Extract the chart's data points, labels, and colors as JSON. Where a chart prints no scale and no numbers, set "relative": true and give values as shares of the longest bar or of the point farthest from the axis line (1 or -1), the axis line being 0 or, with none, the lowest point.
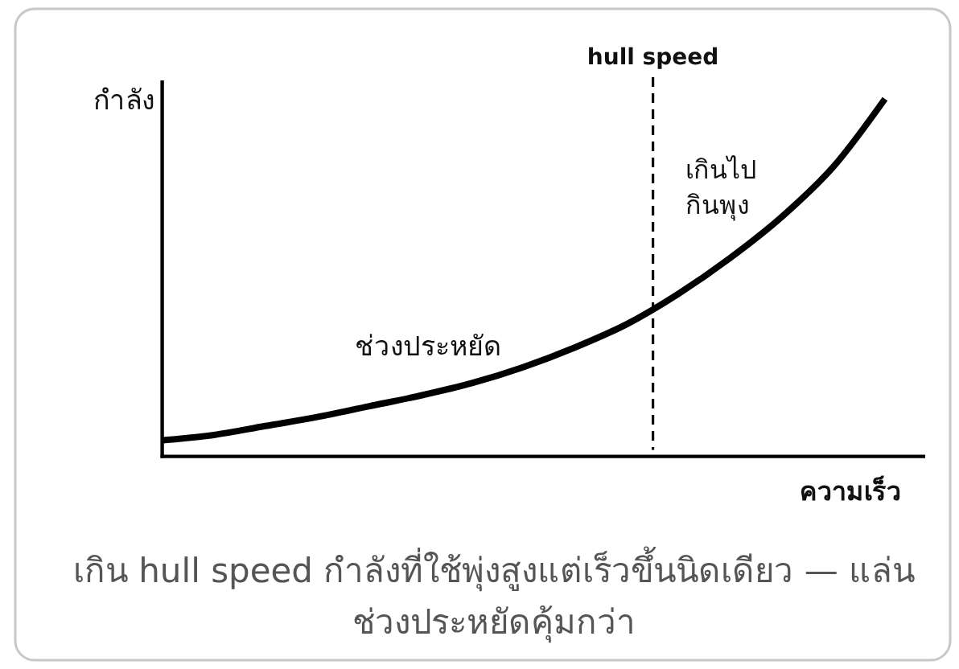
{
  "chart_data": {
    "type": "line",
    "relative": true,
    "xlabel": "ความเร็ว",
    "ylabel": "กำลัง",
    "categories": [
      null,
      null,
      null,
      null,
      null,
      null,
      null,
      null,
      null,
      null,
      null,
      null,
      null,
      null,
      null
    ],
    "series": [
      {
        "color": "#000000",
        "values": [
          0.045,
          0.06,
          0.085,
          0.11,
          0.14,
          0.17,
          0.205,
          0.25,
          0.305,
          0.37,
          0.455,
          0.555,
          0.67,
          0.81,
          1.0
        ]
      }
    ],
    "annotations": [
      "hull speed",
      "ช่วงประหยัด",
      "เกินไป\nกินพุง",
      "เกิน hull speed กำลังที่ใช้พุ่งสูงแต่เร็วขึ้นนิดเดียว — แล่นช่วงประหยัดคุ้มกว่า"
    ]
  }
}
